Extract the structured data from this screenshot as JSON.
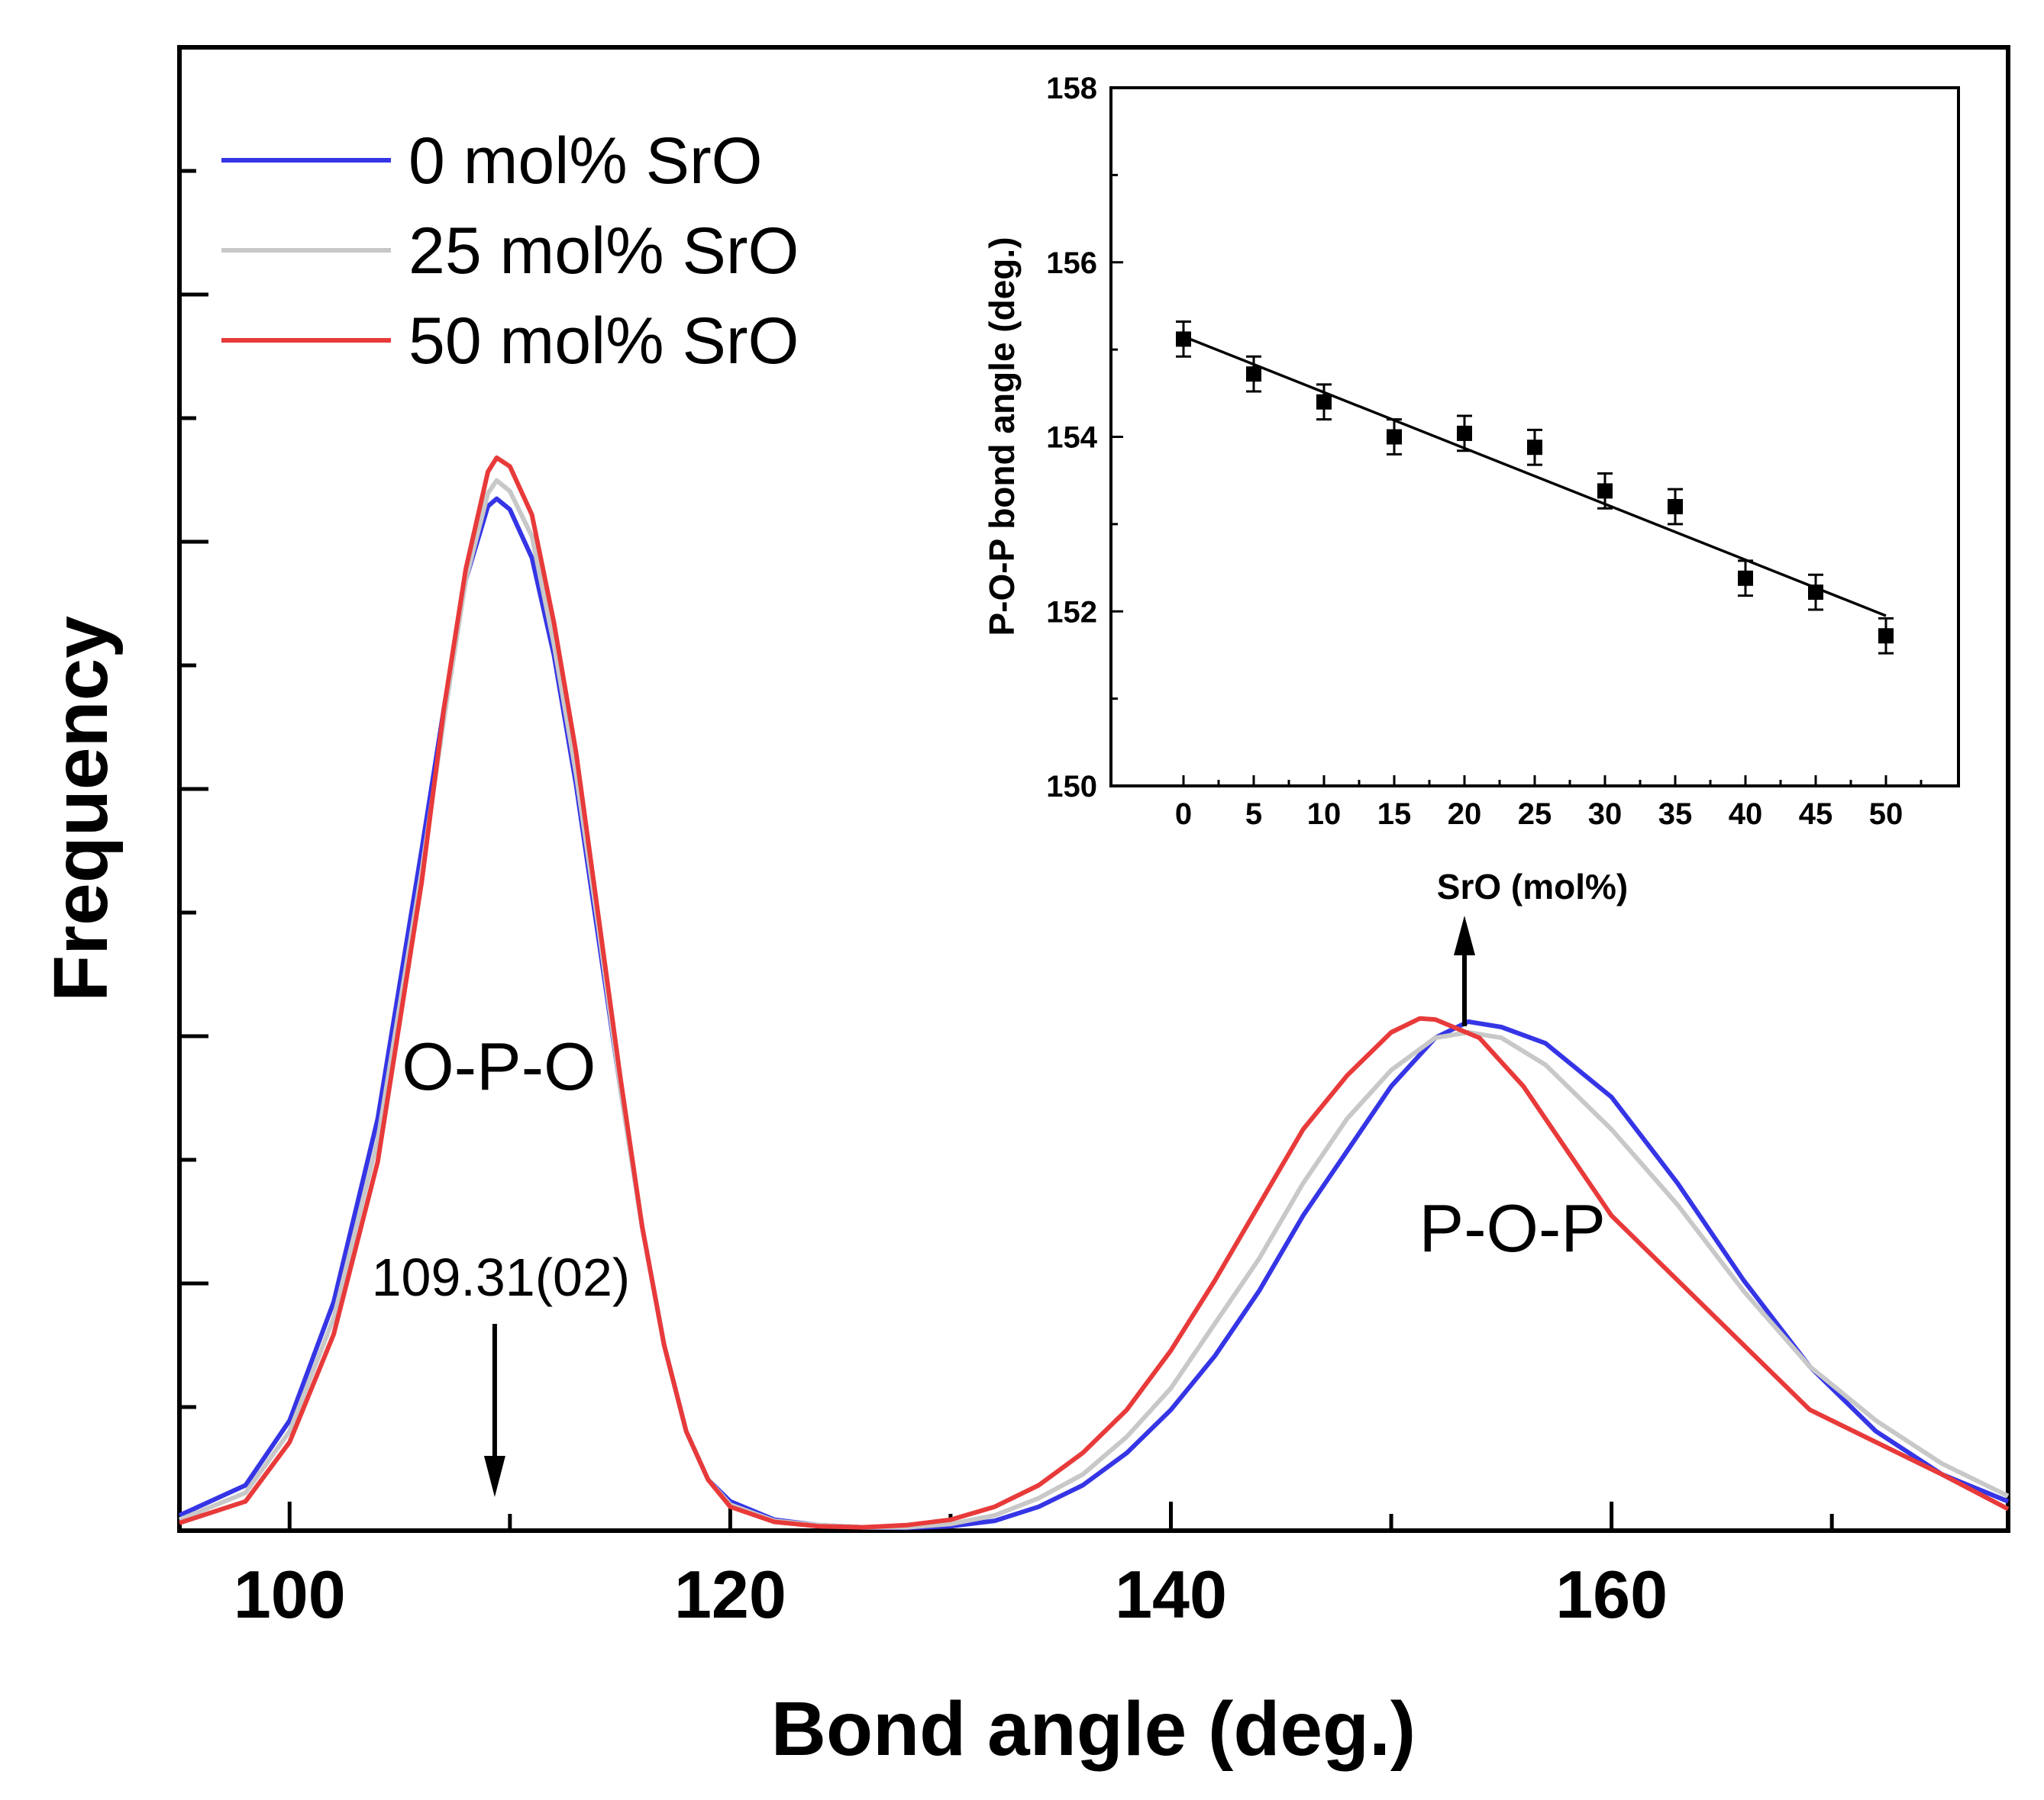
{
  "chart_data": [
    {
      "type": "line",
      "title": "",
      "xlabel": "Bond angle (deg.)",
      "ylabel": "Frequency",
      "xlim": [
        95,
        178
      ],
      "ylim": [
        0,
        1.0
      ],
      "x_ticks": [
        100,
        120,
        140,
        160
      ],
      "y_tick_labels_shown": false,
      "legend": {
        "position": "top-left"
      },
      "grid": false,
      "series": [
        {
          "name": "0 mol% SrO",
          "color": "#3535e6",
          "points": [
            [
              95,
              0.012
            ],
            [
              98,
              0.04
            ],
            [
              100,
              0.1
            ],
            [
              102,
              0.21
            ],
            [
              104,
              0.38
            ],
            [
              106,
              0.63
            ],
            [
              107,
              0.76
            ],
            [
              108,
              0.88
            ],
            [
              109,
              0.948
            ],
            [
              109.4,
              0.955
            ],
            [
              110,
              0.945
            ],
            [
              111,
              0.9
            ],
            [
              112,
              0.81
            ],
            [
              113,
              0.69
            ],
            [
              114,
              0.55
            ],
            [
              115,
              0.41
            ],
            [
              116,
              0.28
            ],
            [
              117,
              0.17
            ],
            [
              118,
              0.09
            ],
            [
              119,
              0.045
            ],
            [
              120,
              0.025
            ],
            [
              122,
              0.008
            ],
            [
              124,
              0.003
            ],
            [
              126,
              0.001
            ],
            [
              128,
              0.0005
            ],
            [
              130,
              0.002
            ],
            [
              132,
              0.007
            ],
            [
              134,
              0.02
            ],
            [
              136,
              0.04
            ],
            [
              138,
              0.07
            ],
            [
              140,
              0.11
            ],
            [
              142,
              0.16
            ],
            [
              144,
              0.22
            ],
            [
              146,
              0.29
            ],
            [
              148,
              0.35
            ],
            [
              150,
              0.41
            ],
            [
              152,
              0.455
            ],
            [
              153.5,
              0.47
            ],
            [
              155,
              0.465
            ],
            [
              157,
              0.45
            ],
            [
              160,
              0.4
            ],
            [
              163,
              0.32
            ],
            [
              166,
              0.23
            ],
            [
              169,
              0.15
            ],
            [
              172,
              0.09
            ],
            [
              175,
              0.05
            ],
            [
              178,
              0.025
            ]
          ]
        },
        {
          "name": "25 mol% SrO",
          "color": "#c8c8c8",
          "points": [
            [
              95,
              0.008
            ],
            [
              98,
              0.033
            ],
            [
              100,
              0.09
            ],
            [
              102,
              0.195
            ],
            [
              104,
              0.36
            ],
            [
              106,
              0.61
            ],
            [
              107,
              0.75
            ],
            [
              108,
              0.88
            ],
            [
              109,
              0.96
            ],
            [
              109.4,
              0.972
            ],
            [
              110,
              0.962
            ],
            [
              111,
              0.92
            ],
            [
              112,
              0.82
            ],
            [
              113,
              0.7
            ],
            [
              114,
              0.56
            ],
            [
              115,
              0.41
            ],
            [
              116,
              0.28
            ],
            [
              117,
              0.17
            ],
            [
              118,
              0.09
            ],
            [
              119,
              0.045
            ],
            [
              120,
              0.022
            ],
            [
              122,
              0.007
            ],
            [
              124,
              0.003
            ],
            [
              126,
              0.001
            ],
            [
              128,
              0.001
            ],
            [
              130,
              0.004
            ],
            [
              132,
              0.012
            ],
            [
              134,
              0.028
            ],
            [
              136,
              0.05
            ],
            [
              138,
              0.085
            ],
            [
              140,
              0.13
            ],
            [
              142,
              0.19
            ],
            [
              144,
              0.25
            ],
            [
              146,
              0.32
            ],
            [
              148,
              0.38
            ],
            [
              150,
              0.425
            ],
            [
              152,
              0.455
            ],
            [
              153.5,
              0.46
            ],
            [
              155,
              0.455
            ],
            [
              157,
              0.43
            ],
            [
              160,
              0.37
            ],
            [
              163,
              0.3
            ],
            [
              166,
              0.22
            ],
            [
              169,
              0.15
            ],
            [
              172,
              0.1
            ],
            [
              175,
              0.06
            ],
            [
              178,
              0.03
            ]
          ]
        },
        {
          "name": "50 mol% SrO",
          "color": "#e83a3a",
          "points": [
            [
              95,
              0.005
            ],
            [
              98,
              0.025
            ],
            [
              100,
              0.08
            ],
            [
              102,
              0.18
            ],
            [
              104,
              0.34
            ],
            [
              106,
              0.6
            ],
            [
              107,
              0.76
            ],
            [
              108,
              0.89
            ],
            [
              109,
              0.98
            ],
            [
              109.4,
              0.993
            ],
            [
              110,
              0.985
            ],
            [
              111,
              0.94
            ],
            [
              112,
              0.84
            ],
            [
              113,
              0.72
            ],
            [
              114,
              0.57
            ],
            [
              115,
              0.42
            ],
            [
              116,
              0.28
            ],
            [
              117,
              0.17
            ],
            [
              118,
              0.09
            ],
            [
              119,
              0.045
            ],
            [
              120,
              0.02
            ],
            [
              122,
              0.006
            ],
            [
              124,
              0.002
            ],
            [
              126,
              0.001
            ],
            [
              128,
              0.003
            ],
            [
              130,
              0.008
            ],
            [
              132,
              0.02
            ],
            [
              134,
              0.04
            ],
            [
              136,
              0.07
            ],
            [
              138,
              0.11
            ],
            [
              140,
              0.165
            ],
            [
              142,
              0.23
            ],
            [
              144,
              0.3
            ],
            [
              146,
              0.37
            ],
            [
              148,
              0.42
            ],
            [
              150,
              0.46
            ],
            [
              151.3,
              0.473
            ],
            [
              152,
              0.472
            ],
            [
              154,
              0.455
            ],
            [
              156,
              0.41
            ],
            [
              158,
              0.35
            ],
            [
              160,
              0.29
            ],
            [
              163,
              0.23
            ],
            [
              166,
              0.17
            ],
            [
              169,
              0.11
            ],
            [
              172,
              0.08
            ],
            [
              175,
              0.05
            ],
            [
              178,
              0.018
            ]
          ]
        }
      ],
      "annotations": [
        {
          "text": "O-P-O",
          "x": 109.5,
          "y": 0.42
        },
        {
          "text": "P-O-P",
          "x": 155.5,
          "y": 0.28
        },
        {
          "text": "109.31(02)",
          "x": 109.31,
          "y": 0.22
        }
      ],
      "arrows": [
        {
          "x": 109.31,
          "y_from": 0.195,
          "y_to": 0.035
        },
        {
          "x": 158.5,
          "y_from": 0.5,
          "y_to": 0.61
        }
      ]
    },
    {
      "type": "scatter",
      "title": "",
      "xlabel": "SrO (mol%)",
      "ylabel": "P-O-P bond angle (deg.)",
      "xlim": [
        -2.5,
        55
      ],
      "ylim": [
        150,
        158
      ],
      "x_ticks": [
        0,
        5,
        10,
        15,
        20,
        25,
        30,
        35,
        40,
        45,
        50
      ],
      "y_ticks": [
        150,
        152,
        154,
        156,
        158
      ],
      "grid": false,
      "series": [
        {
          "name": "",
          "marker": "square",
          "color": "#000000",
          "x": [
            0,
            5,
            10,
            15,
            20,
            25,
            30,
            35,
            40,
            45,
            50
          ],
          "y": [
            155.12,
            154.72,
            154.4,
            154.0,
            154.04,
            153.88,
            153.38,
            153.2,
            152.38,
            152.22,
            151.72
          ],
          "error": [
            0.2,
            0.2,
            0.2,
            0.2,
            0.2,
            0.2,
            0.2,
            0.2,
            0.2,
            0.2,
            0.2
          ]
        }
      ],
      "fit_line": {
        "x": [
          0,
          50
        ],
        "y": [
          155.15,
          151.95
        ]
      }
    }
  ]
}
